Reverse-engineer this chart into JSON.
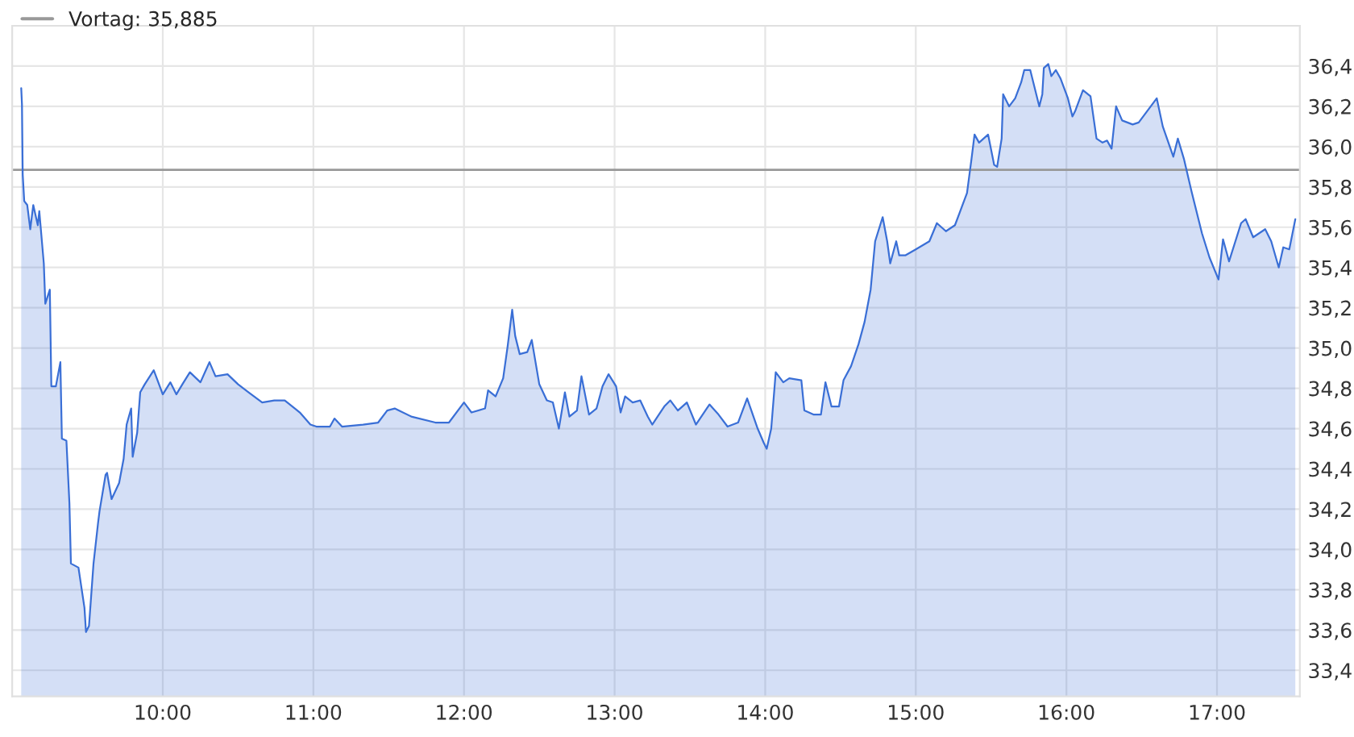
{
  "chart_data": {
    "type": "area",
    "x": [
      9.06,
      9.065,
      9.07,
      9.08,
      9.1,
      9.12,
      9.14,
      9.17,
      9.18,
      9.21,
      9.22,
      9.25,
      9.26,
      9.29,
      9.32,
      9.33,
      9.36,
      9.38,
      9.39,
      9.44,
      9.48,
      9.49,
      9.51,
      9.54,
      9.57,
      9.58,
      9.62,
      9.63,
      9.66,
      9.71,
      9.74,
      9.76,
      9.79,
      9.8,
      9.83,
      9.85,
      9.88,
      9.94,
      10.0,
      10.05,
      10.09,
      10.13,
      10.18,
      10.25,
      10.31,
      10.35,
      10.43,
      10.5,
      10.57,
      10.66,
      10.74,
      10.81,
      10.91,
      10.98,
      11.02,
      11.11,
      11.14,
      11.19,
      11.33,
      11.43,
      11.49,
      11.54,
      11.65,
      11.81,
      11.9,
      12.0,
      12.05,
      12.14,
      12.16,
      12.21,
      12.26,
      12.29,
      12.32,
      12.34,
      12.37,
      12.42,
      12.45,
      12.5,
      12.55,
      12.59,
      12.63,
      12.67,
      12.7,
      12.75,
      12.78,
      12.83,
      12.88,
      12.92,
      12.96,
      13.01,
      13.04,
      13.07,
      13.12,
      13.17,
      13.22,
      13.25,
      13.33,
      13.37,
      13.42,
      13.48,
      13.54,
      13.63,
      13.69,
      13.75,
      13.82,
      13.88,
      13.95,
      13.99,
      14.01,
      14.04,
      14.07,
      14.12,
      14.16,
      14.24,
      14.26,
      14.32,
      14.37,
      14.4,
      14.44,
      14.49,
      14.52,
      14.57,
      14.62,
      14.66,
      14.7,
      14.73,
      14.78,
      14.81,
      14.83,
      14.87,
      14.89,
      14.93,
      15.0,
      15.09,
      15.14,
      15.2,
      15.26,
      15.29,
      15.34,
      15.37,
      15.39,
      15.42,
      15.48,
      15.52,
      15.54,
      15.57,
      15.58,
      15.62,
      15.66,
      15.7,
      15.72,
      15.76,
      15.82,
      15.84,
      15.85,
      15.88,
      15.9,
      15.93,
      15.96,
      16.01,
      16.04,
      16.06,
      16.11,
      16.16,
      16.2,
      16.24,
      16.27,
      16.3,
      16.33,
      16.37,
      16.44,
      16.48,
      16.6,
      16.64,
      16.71,
      16.74,
      16.78,
      16.83,
      16.9,
      16.95,
      17.01,
      17.04,
      17.08,
      17.16,
      17.19,
      17.24,
      17.32,
      17.36,
      17.41,
      17.44,
      17.48,
      17.52
    ],
    "series": [
      {
        "color": "#3a6fd6",
        "values": [
          36.29,
          36.21,
          35.86,
          35.73,
          35.71,
          35.59,
          35.71,
          35.61,
          35.68,
          35.42,
          35.22,
          35.29,
          34.81,
          34.81,
          34.93,
          34.55,
          34.54,
          34.23,
          33.93,
          33.91,
          33.71,
          33.59,
          33.62,
          33.93,
          34.13,
          34.19,
          34.37,
          34.38,
          34.25,
          34.33,
          34.45,
          34.62,
          34.7,
          34.46,
          34.58,
          34.78,
          34.82,
          34.89,
          34.77,
          34.83,
          34.77,
          34.82,
          34.88,
          34.83,
          34.93,
          34.86,
          34.87,
          34.82,
          34.78,
          34.73,
          34.74,
          34.74,
          34.68,
          34.62,
          34.61,
          34.61,
          34.65,
          34.61,
          34.62,
          34.63,
          34.69,
          34.7,
          34.66,
          34.63,
          34.63,
          34.73,
          34.68,
          34.7,
          34.79,
          34.76,
          34.85,
          35.01,
          35.19,
          35.06,
          34.97,
          34.98,
          35.04,
          34.82,
          34.74,
          34.73,
          34.6,
          34.78,
          34.66,
          34.69,
          34.86,
          34.67,
          34.7,
          34.81,
          34.87,
          34.81,
          34.68,
          34.76,
          34.73,
          34.74,
          34.66,
          34.62,
          34.71,
          34.74,
          34.69,
          34.73,
          34.62,
          34.72,
          34.67,
          34.61,
          34.63,
          34.75,
          34.6,
          34.53,
          34.5,
          34.6,
          34.88,
          34.83,
          34.85,
          34.84,
          34.69,
          34.67,
          34.67,
          34.83,
          34.71,
          34.71,
          34.84,
          34.91,
          35.02,
          35.13,
          35.29,
          35.53,
          35.65,
          35.53,
          35.42,
          35.53,
          35.46,
          35.46,
          35.49,
          35.53,
          35.62,
          35.58,
          35.61,
          35.67,
          35.77,
          35.94,
          36.06,
          36.02,
          36.06,
          35.91,
          35.9,
          36.04,
          36.26,
          36.2,
          36.24,
          36.32,
          36.38,
          36.38,
          36.2,
          36.26,
          36.39,
          36.41,
          36.35,
          36.38,
          36.34,
          36.24,
          36.15,
          36.18,
          36.28,
          36.25,
          36.04,
          36.02,
          36.03,
          35.99,
          36.2,
          36.13,
          36.11,
          36.12,
          36.24,
          36.1,
          35.95,
          36.04,
          35.94,
          35.78,
          35.57,
          35.45,
          35.34,
          35.54,
          35.43,
          35.62,
          35.64,
          35.55,
          35.59,
          35.53,
          35.4,
          35.5,
          35.49,
          35.64
        ]
      }
    ],
    "ref_lines": [
      {
        "axis": "y",
        "value": 35.885,
        "label": "Vortag: 35,885",
        "color": "#999999"
      }
    ],
    "xlim": [
      9.0,
      17.55
    ],
    "xticks": [
      {
        "value": 10,
        "label": "10:00"
      },
      {
        "value": 11,
        "label": "11:00"
      },
      {
        "value": 12,
        "label": "12:00"
      },
      {
        "value": 13,
        "label": "13:00"
      },
      {
        "value": 14,
        "label": "14:00"
      },
      {
        "value": 15,
        "label": "15:00"
      },
      {
        "value": 16,
        "label": "16:00"
      },
      {
        "value": 17,
        "label": "17:00"
      }
    ],
    "ylim": [
      33.27,
      36.6
    ],
    "yticks": [
      {
        "value": 33.4,
        "label": "33,4"
      },
      {
        "value": 33.6,
        "label": "33,6"
      },
      {
        "value": 33.8,
        "label": "33,8"
      },
      {
        "value": 34.0,
        "label": "34,0"
      },
      {
        "value": 34.2,
        "label": "34,2"
      },
      {
        "value": 34.4,
        "label": "34,4"
      },
      {
        "value": 34.6,
        "label": "34,6"
      },
      {
        "value": 34.8,
        "label": "34,8"
      },
      {
        "value": 35.0,
        "label": "35,0"
      },
      {
        "value": 35.2,
        "label": "35,2"
      },
      {
        "value": 35.4,
        "label": "35,4"
      },
      {
        "value": 35.6,
        "label": "35,6"
      },
      {
        "value": 35.8,
        "label": "35,8"
      },
      {
        "value": 36.0,
        "label": "36,0"
      },
      {
        "value": 36.2,
        "label": "36,2"
      },
      {
        "value": 36.4,
        "label": "36,4"
      }
    ],
    "grid": true,
    "legend": "top left"
  }
}
